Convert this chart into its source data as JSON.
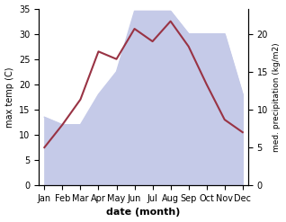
{
  "months": [
    "Jan",
    "Feb",
    "Mar",
    "Apr",
    "May",
    "Jun",
    "Jul",
    "Aug",
    "Sep",
    "Oct",
    "Nov",
    "Dec"
  ],
  "temperature": [
    7.5,
    12.0,
    17.0,
    26.5,
    25.0,
    31.0,
    28.5,
    32.5,
    27.5,
    20.0,
    13.0,
    10.5
  ],
  "precipitation": [
    9.0,
    8.0,
    8.0,
    12.0,
    15.0,
    23.0,
    23.0,
    23.0,
    20.0,
    20.0,
    20.0,
    12.0
  ],
  "temp_color": "#993344",
  "precip_fill_color": "#c5cae8",
  "temp_ylim": [
    0,
    35
  ],
  "precip_ylim": [
    0,
    23.33
  ],
  "temp_yticks": [
    0,
    5,
    10,
    15,
    20,
    25,
    30,
    35
  ],
  "precip_yticks": [
    0,
    5,
    10,
    15,
    20
  ],
  "xlabel": "date (month)",
  "ylabel_left": "max temp (C)",
  "ylabel_right": "med. precipitation (kg/m2)",
  "figsize": [
    3.18,
    2.47
  ],
  "dpi": 100
}
